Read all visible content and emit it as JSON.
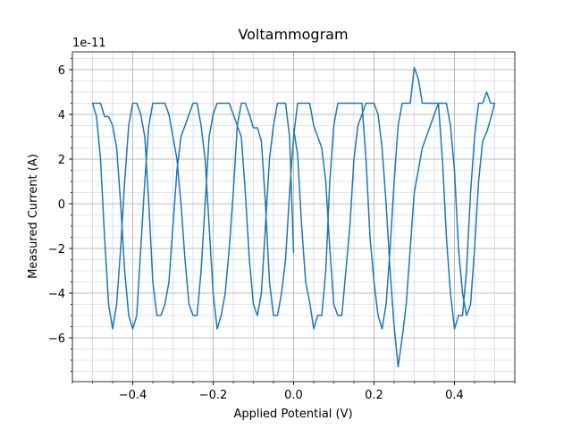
{
  "chart_data": {
    "type": "line",
    "title": "Voltammogram",
    "x_label": "Applied Potential (V)",
    "y_label": "Measured Current (A)",
    "y_offset_label": "1e-11",
    "xlim": [
      -0.55,
      0.55
    ],
    "ylim": [
      -7.96,
      6.8
    ],
    "xticks": [
      {
        "value": -0.4,
        "label": "−0.4"
      },
      {
        "value": -0.2,
        "label": "−0.2"
      },
      {
        "value": 0,
        "label": "0.0"
      },
      0.2,
      0.4
    ],
    "yticks": [
      {
        "value": -6,
        "label": "−6"
      },
      {
        "value": -4,
        "label": "−4"
      },
      {
        "value": -2,
        "label": "−2"
      },
      0,
      2,
      4,
      6
    ],
    "x_minor_ticks": [
      -0.55,
      -0.5,
      -0.45,
      -0.4,
      -0.35,
      -0.3,
      -0.25,
      -0.2,
      -0.15,
      -0.1,
      -0.05,
      0,
      0.05,
      0.1,
      0.15,
      0.2,
      0.25,
      0.3,
      0.35,
      0.4,
      0.45,
      0.5,
      0.55
    ],
    "y_minor_ticks": [
      -7.5,
      -7,
      -6.5,
      -6,
      -5.5,
      -5,
      -4.5,
      -4,
      -3.5,
      -3,
      -2.5,
      -2,
      -1.5,
      -1,
      -0.5,
      0,
      0.5,
      1,
      1.5,
      2,
      2.5,
      3,
      3.5,
      4,
      4.5,
      5,
      5.5,
      6,
      6.5
    ],
    "grid": true,
    "minor_grid": true,
    "x": [
      0,
      0.01,
      0.02,
      0.03,
      0.04,
      0.05,
      0.06,
      0.07,
      0.08,
      0.09,
      0.1,
      0.11,
      0.12,
      0.13,
      0.14,
      0.15,
      0.16,
      0.17,
      0.18,
      0.19,
      0.2,
      0.21,
      0.22,
      0.23,
      0.24,
      0.25,
      0.26,
      0.27,
      0.28,
      0.29,
      0.3,
      0.31,
      0.32,
      0.33,
      0.34,
      0.35,
      0.36,
      0.37,
      0.38,
      0.39,
      0.4,
      0.41,
      0.42,
      0.43,
      0.44,
      0.45,
      0.46,
      0.47,
      0.48,
      0.49,
      0.5,
      0.49,
      0.48,
      0.47,
      0.46,
      0.45,
      0.44,
      0.43,
      0.42,
      0.41,
      0.4,
      0.39,
      0.38,
      0.37,
      0.36,
      0.35,
      0.34,
      0.33,
      0.32,
      0.31,
      0.3,
      0.29,
      0.28,
      0.27,
      0.26,
      0.25,
      0.24,
      0.23,
      0.22,
      0.21,
      0.2,
      0.19,
      0.18,
      0.17,
      0.16,
      0.15,
      0.14,
      0.13,
      0.12,
      0.11,
      0.1,
      0.09,
      0.08,
      0.07,
      0.06,
      0.05,
      0.04,
      0.03,
      0.02,
      0.01,
      0,
      -0.01,
      -0.02,
      -0.03,
      -0.04,
      -0.05,
      -0.06,
      -0.07,
      -0.08,
      -0.09,
      -0.1,
      -0.11,
      -0.12,
      -0.13,
      -0.14,
      -0.15,
      -0.16,
      -0.17,
      -0.18,
      -0.19,
      -0.2,
      -0.21,
      -0.22,
      -0.23,
      -0.24,
      -0.25,
      -0.26,
      -0.27,
      -0.28,
      -0.29,
      -0.3,
      -0.31,
      -0.32,
      -0.33,
      -0.34,
      -0.35,
      -0.36,
      -0.37,
      -0.38,
      -0.39,
      -0.4,
      -0.41,
      -0.42,
      -0.43,
      -0.44,
      -0.45,
      -0.46,
      -0.47,
      -0.48,
      -0.49,
      -0.5,
      -0.49,
      -0.48,
      -0.47,
      -0.46,
      -0.45,
      -0.44,
      -0.43,
      -0.42,
      -0.41,
      -0.4,
      -0.39,
      -0.38,
      -0.37,
      -0.36,
      -0.35,
      -0.34,
      -0.33,
      -0.32,
      -0.31,
      -0.3,
      -0.29,
      -0.28,
      -0.27,
      -0.26,
      -0.25,
      -0.24,
      -0.23,
      -0.22,
      -0.21,
      -0.2,
      -0.19,
      -0.18,
      -0.17,
      -0.16,
      -0.15,
      -0.14,
      -0.13,
      -0.12,
      -0.11,
      -0.1,
      -0.09,
      -0.08,
      -0.07,
      -0.06,
      -0.05,
      -0.04,
      -0.03,
      -0.02,
      -0.01,
      0
    ],
    "series": [
      {
        "color": "#1f77b4",
        "values": [
          3.35,
          2.2,
          -1,
          -3.5,
          -4.4,
          -5.6,
          -5.0,
          -5.0,
          -3.0,
          1.0,
          3.5,
          4.5,
          4.5,
          4.5,
          4.5,
          4.5,
          4.5,
          4.5,
          2.0,
          -1.5,
          -3.5,
          -5.0,
          -5.6,
          -4.5,
          -2.0,
          1.0,
          3.5,
          4.5,
          4.5,
          4.5,
          6.1,
          5.6,
          4.5,
          4.5,
          4.5,
          4.5,
          4.5,
          2.0,
          -1.5,
          -4.0,
          -5.6,
          -5.0,
          -5.0,
          -3.0,
          0.5,
          3.0,
          4.5,
          4.5,
          5.0,
          4.5,
          4.5,
          3.8,
          3.2,
          2.8,
          1.0,
          -2.0,
          -4.5,
          -5.0,
          -4.0,
          -2.0,
          1.5,
          3.5,
          4.5,
          4.5,
          4.5,
          4.0,
          3.5,
          3.0,
          2.5,
          1.5,
          0.5,
          -2.0,
          -4.5,
          -6.0,
          -7.3,
          -5.5,
          -3.0,
          0.0,
          2.5,
          4.0,
          4.5,
          4.5,
          4.5,
          4.0,
          3.5,
          2.0,
          -1.0,
          -3.0,
          -5.0,
          -5.0,
          -4.5,
          -2.0,
          1.0,
          2.5,
          3.0,
          3.5,
          4.5,
          4.5,
          4.5,
          4.5,
          3.0,
          0.5,
          -2.5,
          -4.0,
          -5.0,
          -5.0,
          -3.5,
          0.0,
          2.8,
          3.4,
          3.4,
          4.0,
          4.5,
          4.5,
          3.5,
          0.5,
          -2.0,
          -4.0,
          -5.0,
          -5.6,
          -4.0,
          -1.0,
          2.0,
          3.5,
          4.5,
          4.5,
          4.0,
          3.5,
          3.0,
          1.5,
          -1.0,
          -3.5,
          -4.5,
          -5.0,
          -5.0,
          -3.5,
          0.0,
          3.0,
          4.0,
          4.5,
          4.5,
          3.5,
          1.0,
          -2.0,
          -4.5,
          -5.6,
          -4.5,
          -1.5,
          2.0,
          3.9,
          4.5,
          4.5,
          4.5,
          3.9,
          3.9,
          3.5,
          2.5,
          0.0,
          -3.0,
          -5.0,
          -5.6,
          -5.0,
          -2.0,
          1.0,
          3.5,
          4.5,
          4.5,
          4.5,
          4.5,
          4.0,
          3.0,
          2.0,
          0.0,
          -2.5,
          -4.5,
          -5.0,
          -5.0,
          -3.0,
          0.0,
          3.0,
          4.0,
          4.5,
          4.5,
          4.5,
          4.5,
          4.0,
          3.5,
          3.0,
          0.5,
          -2.5,
          -4.5,
          -5.0,
          -4.0,
          -1.0,
          2.0,
          3.5,
          4.5,
          4.5,
          4.5,
          3.0,
          -2.2
        ]
      }
    ]
  }
}
